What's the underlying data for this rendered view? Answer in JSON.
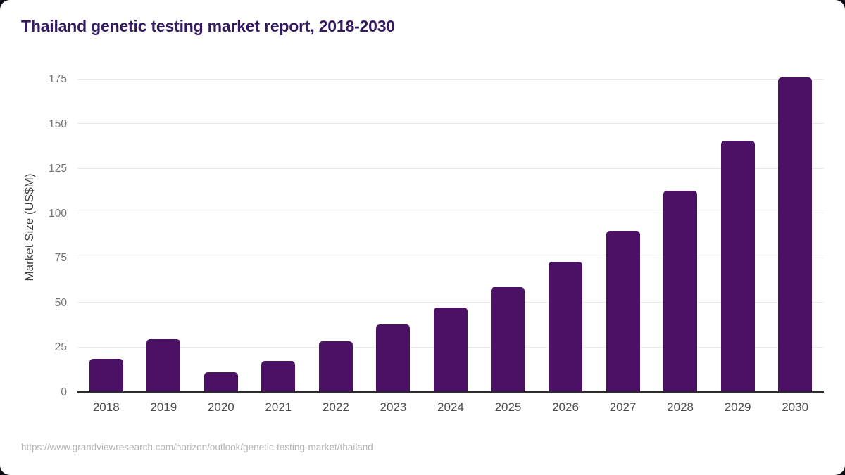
{
  "header": {
    "title": "Thailand genetic testing market report, 2018-2030"
  },
  "chart_data": {
    "type": "bar",
    "title": "Thailand genetic testing market report, 2018-2030",
    "categories": [
      "2018",
      "2019",
      "2020",
      "2021",
      "2022",
      "2023",
      "2024",
      "2025",
      "2026",
      "2027",
      "2028",
      "2029",
      "2030"
    ],
    "values": [
      18.4,
      29.4,
      11.2,
      17.5,
      28.5,
      38.0,
      47.2,
      58.5,
      72.7,
      90.3,
      112.8,
      140.5,
      176.0
    ],
    "xlabel": "",
    "ylabel": "Market Size (US$M)",
    "ylim": [
      0,
      176
    ],
    "yticks": [
      0,
      25,
      50,
      75,
      100,
      125,
      150,
      175
    ],
    "grid": true,
    "legend": "none",
    "bar_color": "#4a1164"
  },
  "footer": {
    "source_url": "https://www.grandviewresearch.com/horizon/outlook/genetic-testing-market/thailand"
  },
  "theme": {
    "page_background": "#0b0b12",
    "card_background": "#ffffff",
    "title_color": "#341a5e",
    "bar_color": "#4a1164",
    "grid_color": "#e8e8e8",
    "axis_line_color": "#2d2d2d",
    "ytick_color": "#757575",
    "xtick_color": "#4c4c4c",
    "ylabel_color": "#3f3f3f",
    "footer_color": "#b4b4b4"
  }
}
